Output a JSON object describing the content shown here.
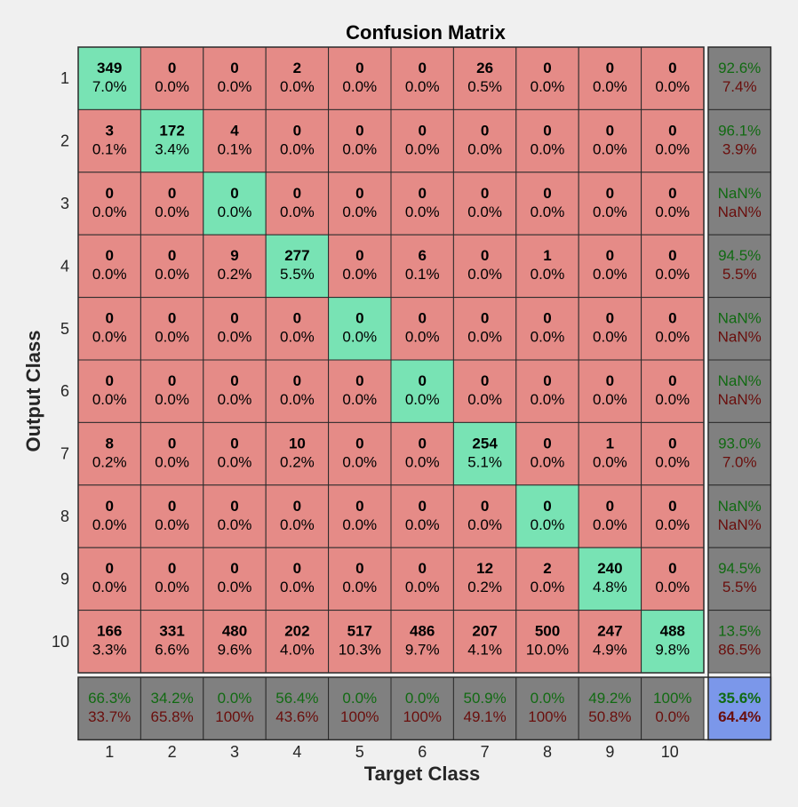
{
  "chart_data": {
    "type": "heatmap",
    "title": "Confusion Matrix",
    "xlabel": "Target Class",
    "ylabel": "Output Class",
    "x_ticks": [
      "1",
      "2",
      "3",
      "4",
      "5",
      "6",
      "7",
      "8",
      "9",
      "10"
    ],
    "y_ticks": [
      "1",
      "2",
      "3",
      "4",
      "5",
      "6",
      "7",
      "8",
      "9",
      "10"
    ],
    "counts": [
      [
        349,
        0,
        0,
        2,
        0,
        0,
        26,
        0,
        0,
        0
      ],
      [
        3,
        172,
        4,
        0,
        0,
        0,
        0,
        0,
        0,
        0
      ],
      [
        0,
        0,
        0,
        0,
        0,
        0,
        0,
        0,
        0,
        0
      ],
      [
        0,
        0,
        9,
        277,
        0,
        6,
        0,
        1,
        0,
        0
      ],
      [
        0,
        0,
        0,
        0,
        0,
        0,
        0,
        0,
        0,
        0
      ],
      [
        0,
        0,
        0,
        0,
        0,
        0,
        0,
        0,
        0,
        0
      ],
      [
        8,
        0,
        0,
        10,
        0,
        0,
        254,
        0,
        1,
        0
      ],
      [
        0,
        0,
        0,
        0,
        0,
        0,
        0,
        0,
        0,
        0
      ],
      [
        0,
        0,
        0,
        0,
        0,
        0,
        12,
        2,
        240,
        0
      ],
      [
        166,
        331,
        480,
        202,
        517,
        486,
        207,
        500,
        247,
        488
      ]
    ],
    "percents": [
      [
        "7.0%",
        "0.0%",
        "0.0%",
        "0.0%",
        "0.0%",
        "0.0%",
        "0.5%",
        "0.0%",
        "0.0%",
        "0.0%"
      ],
      [
        "0.1%",
        "3.4%",
        "0.1%",
        "0.0%",
        "0.0%",
        "0.0%",
        "0.0%",
        "0.0%",
        "0.0%",
        "0.0%"
      ],
      [
        "0.0%",
        "0.0%",
        "0.0%",
        "0.0%",
        "0.0%",
        "0.0%",
        "0.0%",
        "0.0%",
        "0.0%",
        "0.0%"
      ],
      [
        "0.0%",
        "0.0%",
        "0.2%",
        "5.5%",
        "0.0%",
        "0.1%",
        "0.0%",
        "0.0%",
        "0.0%",
        "0.0%"
      ],
      [
        "0.0%",
        "0.0%",
        "0.0%",
        "0.0%",
        "0.0%",
        "0.0%",
        "0.0%",
        "0.0%",
        "0.0%",
        "0.0%"
      ],
      [
        "0.0%",
        "0.0%",
        "0.0%",
        "0.0%",
        "0.0%",
        "0.0%",
        "0.0%",
        "0.0%",
        "0.0%",
        "0.0%"
      ],
      [
        "0.2%",
        "0.0%",
        "0.0%",
        "0.2%",
        "0.0%",
        "0.0%",
        "5.1%",
        "0.0%",
        "0.0%",
        "0.0%"
      ],
      [
        "0.0%",
        "0.0%",
        "0.0%",
        "0.0%",
        "0.0%",
        "0.0%",
        "0.0%",
        "0.0%",
        "0.0%",
        "0.0%"
      ],
      [
        "0.0%",
        "0.0%",
        "0.0%",
        "0.0%",
        "0.0%",
        "0.0%",
        "0.2%",
        "0.0%",
        "4.8%",
        "0.0%"
      ],
      [
        "3.3%",
        "6.6%",
        "9.6%",
        "4.0%",
        "10.3%",
        "9.7%",
        "4.1%",
        "10.0%",
        "4.9%",
        "9.8%"
      ]
    ],
    "row_summary": [
      [
        "92.6%",
        "7.4%"
      ],
      [
        "96.1%",
        "3.9%"
      ],
      [
        "NaN%",
        "NaN%"
      ],
      [
        "94.5%",
        "5.5%"
      ],
      [
        "NaN%",
        "NaN%"
      ],
      [
        "NaN%",
        "NaN%"
      ],
      [
        "93.0%",
        "7.0%"
      ],
      [
        "NaN%",
        "NaN%"
      ],
      [
        "94.5%",
        "5.5%"
      ],
      [
        "13.5%",
        "86.5%"
      ]
    ],
    "col_summary": [
      [
        "66.3%",
        "33.7%"
      ],
      [
        "34.2%",
        "65.8%"
      ],
      [
        "0.0%",
        "100%"
      ],
      [
        "56.4%",
        "43.6%"
      ],
      [
        "0.0%",
        "100%"
      ],
      [
        "0.0%",
        "100%"
      ],
      [
        "50.9%",
        "49.1%"
      ],
      [
        "0.0%",
        "100%"
      ],
      [
        "49.2%",
        "50.8%"
      ],
      [
        "100%",
        "0.0%"
      ]
    ],
    "total": [
      "35.6%",
      "64.4%"
    ],
    "colors": {
      "diagonal": "#78e3b4",
      "off_diagonal": "#e58b87",
      "summary": "#808080",
      "total": "#7b97ea",
      "good_text": "#116a12",
      "bad_text": "#6a0e0c",
      "grid": "#2b2b2b"
    }
  }
}
